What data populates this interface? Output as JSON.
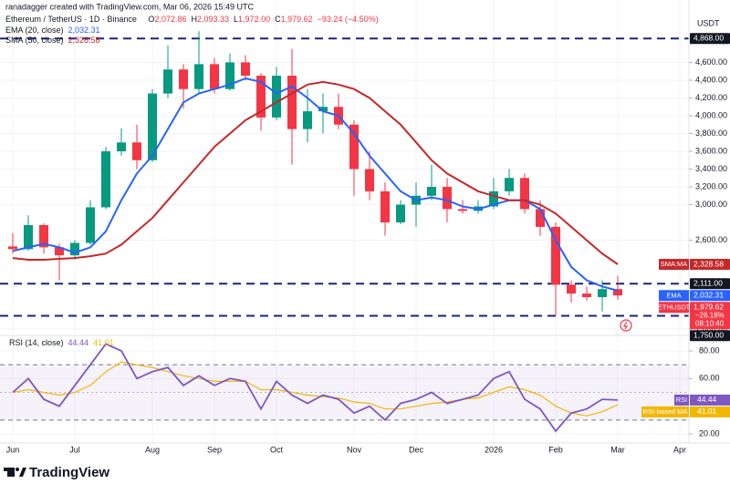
{
  "header": {
    "credit": "ranadagger created with TradingView.com, Mar 06, 2026 15:49 UTC",
    "symbol": "Ethereum / TetherUS · 1D · Binance",
    "ohlc": [
      {
        "k": "O",
        "v": "2,072.86"
      },
      {
        "k": "H",
        "v": "2,093.33"
      },
      {
        "k": "L",
        "v": "1,972.00"
      },
      {
        "k": "C",
        "v": "1,979.62"
      }
    ],
    "change": "−93.24 (−4.50%)",
    "currency": "USDT",
    "logo": "TradingView"
  },
  "chart_data": [
    {
      "type": "candlestick",
      "categories": [
        "Jun",
        null,
        null,
        null,
        "Jul",
        null,
        null,
        null,
        null,
        "Aug",
        null,
        null,
        null,
        "Sep",
        null,
        null,
        null,
        "Oct",
        null,
        null,
        null,
        null,
        "Nov",
        null,
        null,
        null,
        "Dec",
        null,
        null,
        null,
        null,
        "2026",
        null,
        null,
        null,
        "Feb",
        null,
        null,
        null,
        "Mar",
        null,
        null,
        null,
        "Apr"
      ],
      "open": [
        2530,
        2500,
        2770,
        2520,
        2430,
        2570,
        2970,
        3600,
        3700,
        3500,
        4250,
        4520,
        4300,
        4580,
        4300,
        4600,
        4450,
        3980,
        4450,
        3850,
        4050,
        4100,
        3900,
        3400,
        3150,
        2800,
        3000,
        3100,
        3200,
        2950,
        2930,
        2980,
        3150,
        3300,
        2950,
        2750,
        2100,
        2000,
        1960,
        2050,
        null,
        null,
        null,
        null
      ],
      "high": [
        2680,
        2880,
        2790,
        2560,
        2600,
        3050,
        3650,
        3860,
        3900,
        4300,
        4790,
        4580,
        4950,
        4650,
        4700,
        4680,
        4480,
        4550,
        4750,
        4300,
        4250,
        4250,
        3950,
        3600,
        3250,
        3050,
        3250,
        3450,
        3300,
        3050,
        3050,
        3300,
        3400,
        3350,
        3050,
        2800,
        2150,
        2080,
        2150,
        2200,
        null,
        null,
        null,
        null
      ],
      "low": [
        2450,
        2480,
        2450,
        2150,
        2380,
        2550,
        2950,
        3550,
        3400,
        3480,
        4200,
        4080,
        4250,
        4250,
        4280,
        4400,
        3830,
        3950,
        3450,
        3700,
        3800,
        3850,
        3100,
        3050,
        2650,
        2780,
        2750,
        3050,
        2800,
        2900,
        2900,
        2950,
        3100,
        2900,
        2650,
        1750,
        1900,
        1920,
        1800,
        1930,
        null,
        null,
        null,
        null
      ],
      "close": [
        2500,
        2770,
        2520,
        2430,
        2570,
        2970,
        3600,
        3700,
        3500,
        4250,
        4520,
        4300,
        4580,
        4300,
        4600,
        4450,
        3980,
        4450,
        3850,
        4050,
        4100,
        3900,
        3400,
        3150,
        2800,
        3000,
        3100,
        3200,
        2950,
        2930,
        2980,
        3150,
        3300,
        2950,
        2750,
        2100,
        2000,
        1960,
        2050,
        1979.62,
        null,
        null,
        null,
        null
      ],
      "up_color": "#089981",
      "down_color": "#f23645",
      "symbol_short": "ETHUSDT",
      "close_label": "1,979.62",
      "change_label": "−26.18%",
      "countdown": "08:10:40",
      "series": [
        {
          "name": "EMA (20, close)",
          "short": "EMA",
          "color": "#2962ff",
          "last_label": "2,032.31",
          "values": [
            2480,
            2520,
            2560,
            2520,
            2460,
            2520,
            2700,
            3050,
            3350,
            3550,
            3850,
            4150,
            4250,
            4300,
            4350,
            4420,
            4380,
            4250,
            4330,
            4200,
            4050,
            4000,
            3800,
            3550,
            3350,
            3150,
            3050,
            3080,
            3050,
            2980,
            2950,
            3000,
            3050,
            3050,
            2950,
            2600,
            2300,
            2150,
            2080,
            2032.31,
            null,
            null,
            null,
            null
          ]
        },
        {
          "name": "SMA (50, close)",
          "short": "SMA:MA",
          "color": "#c62828",
          "last_label": "2,328.58",
          "values": [
            2400,
            2380,
            2380,
            2390,
            2400,
            2420,
            2450,
            2550,
            2700,
            2850,
            3050,
            3250,
            3450,
            3650,
            3800,
            3950,
            4050,
            4150,
            4250,
            4350,
            4380,
            4350,
            4300,
            4200,
            4050,
            3900,
            3700,
            3500,
            3350,
            3250,
            3150,
            3100,
            3050,
            3050,
            3000,
            2900,
            2750,
            2600,
            2450,
            2328.58,
            null,
            null,
            null,
            null
          ]
        }
      ],
      "hlines": [
        {
          "value": 4868,
          "label": "4,868.00"
        },
        {
          "value": 2111,
          "label": "2,111.00"
        },
        {
          "value": 1750,
          "label": "1,750.00"
        }
      ],
      "hline_color": "#1a237e",
      "ylim": [
        1550,
        4994
      ],
      "yticks": [
        {
          "value": 4600,
          "label": "4,600.00"
        },
        {
          "value": 4400,
          "label": "4,400.00"
        },
        {
          "value": 4200,
          "label": "4,200.00"
        },
        {
          "value": 4000,
          "label": "4,000.00"
        },
        {
          "value": 3800,
          "label": "3,800.00"
        },
        {
          "value": 3600,
          "label": "3,600.00"
        },
        {
          "value": 3400,
          "label": "3,400.00"
        },
        {
          "value": 3200,
          "label": "3,200.00"
        },
        {
          "value": 3000,
          "label": "3,000.00"
        },
        {
          "value": 2600,
          "label": "2,600.00"
        },
        {
          "value": 1600,
          "label": "1,600.00"
        }
      ],
      "grid": true
    },
    {
      "type": "line",
      "title": "RSI (14, close)",
      "series": [
        {
          "name": "RSI",
          "color": "#7e57c2",
          "last_label": "44.44",
          "values": [
            50,
            60,
            45,
            40,
            55,
            70,
            85,
            80,
            60,
            65,
            68,
            55,
            62,
            55,
            60,
            58,
            38,
            58,
            48,
            42,
            48,
            45,
            35,
            40,
            30,
            42,
            45,
            50,
            42,
            45,
            48,
            60,
            65,
            45,
            38,
            22,
            35,
            38,
            45,
            44.44,
            null,
            null,
            null,
            null
          ]
        },
        {
          "name": "RSI-based MA",
          "color": "#f2b705",
          "last_label": "41.01",
          "values": [
            50,
            52,
            50,
            48,
            50,
            55,
            65,
            72,
            70,
            68,
            65,
            62,
            60,
            58,
            58,
            58,
            52,
            52,
            50,
            48,
            47,
            46,
            43,
            42,
            38,
            38,
            40,
            42,
            43,
            45,
            46,
            50,
            54,
            52,
            48,
            40,
            35,
            33,
            36,
            41.01,
            null,
            null,
            null,
            null
          ]
        }
      ],
      "bands": [
        70,
        30
      ],
      "midline": 50,
      "ylim": [
        13.4,
        89.9
      ],
      "yticks": [
        {
          "value": 80,
          "label": "80.00"
        },
        {
          "value": 60,
          "label": "60.00"
        },
        {
          "value": 20,
          "label": "20.00"
        }
      ],
      "grid": true
    }
  ]
}
